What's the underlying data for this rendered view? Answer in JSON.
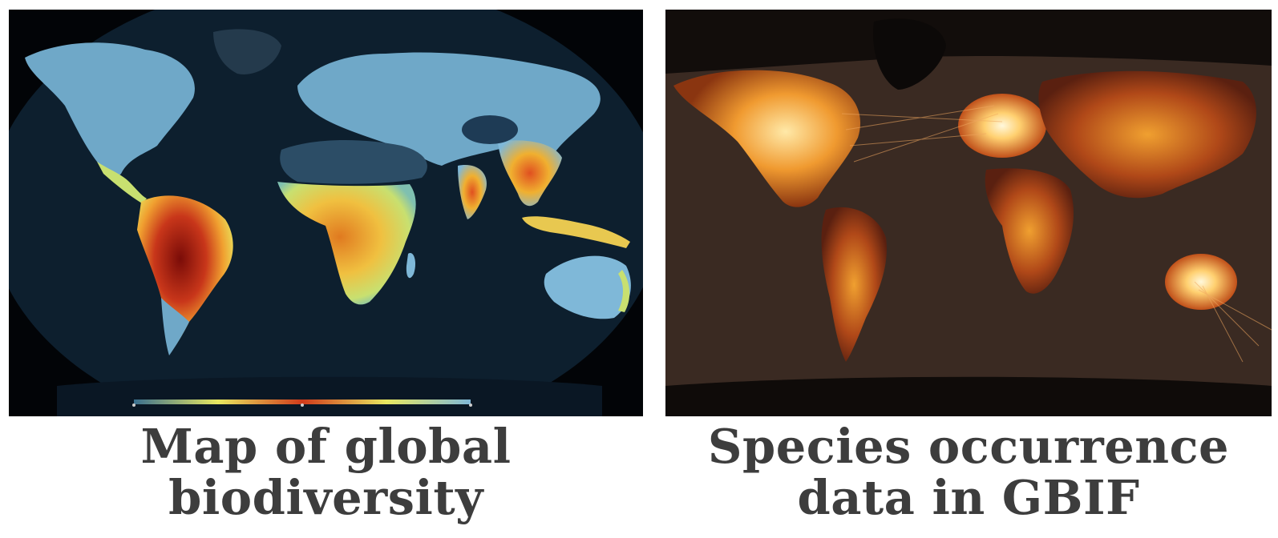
{
  "maps": [
    {
      "caption_lines": [
        "Map of global",
        "biodiversity"
      ],
      "background_color": "#0b1a2a",
      "colormap": [
        "#0b1a2a",
        "#3a6f8f",
        "#7fb8d8",
        "#e8e860",
        "#f0a030",
        "#d03a1a",
        "#8a1010"
      ],
      "has_colorbar": true
    },
    {
      "caption_lines": [
        "Species occurrence",
        "data in GBIF"
      ],
      "background_color": "#2b2522",
      "colormap": [
        "#1a1412",
        "#6b2810",
        "#c0501a",
        "#f09a30",
        "#ffd070",
        "#fff4c8"
      ],
      "has_colorbar": false
    }
  ]
}
